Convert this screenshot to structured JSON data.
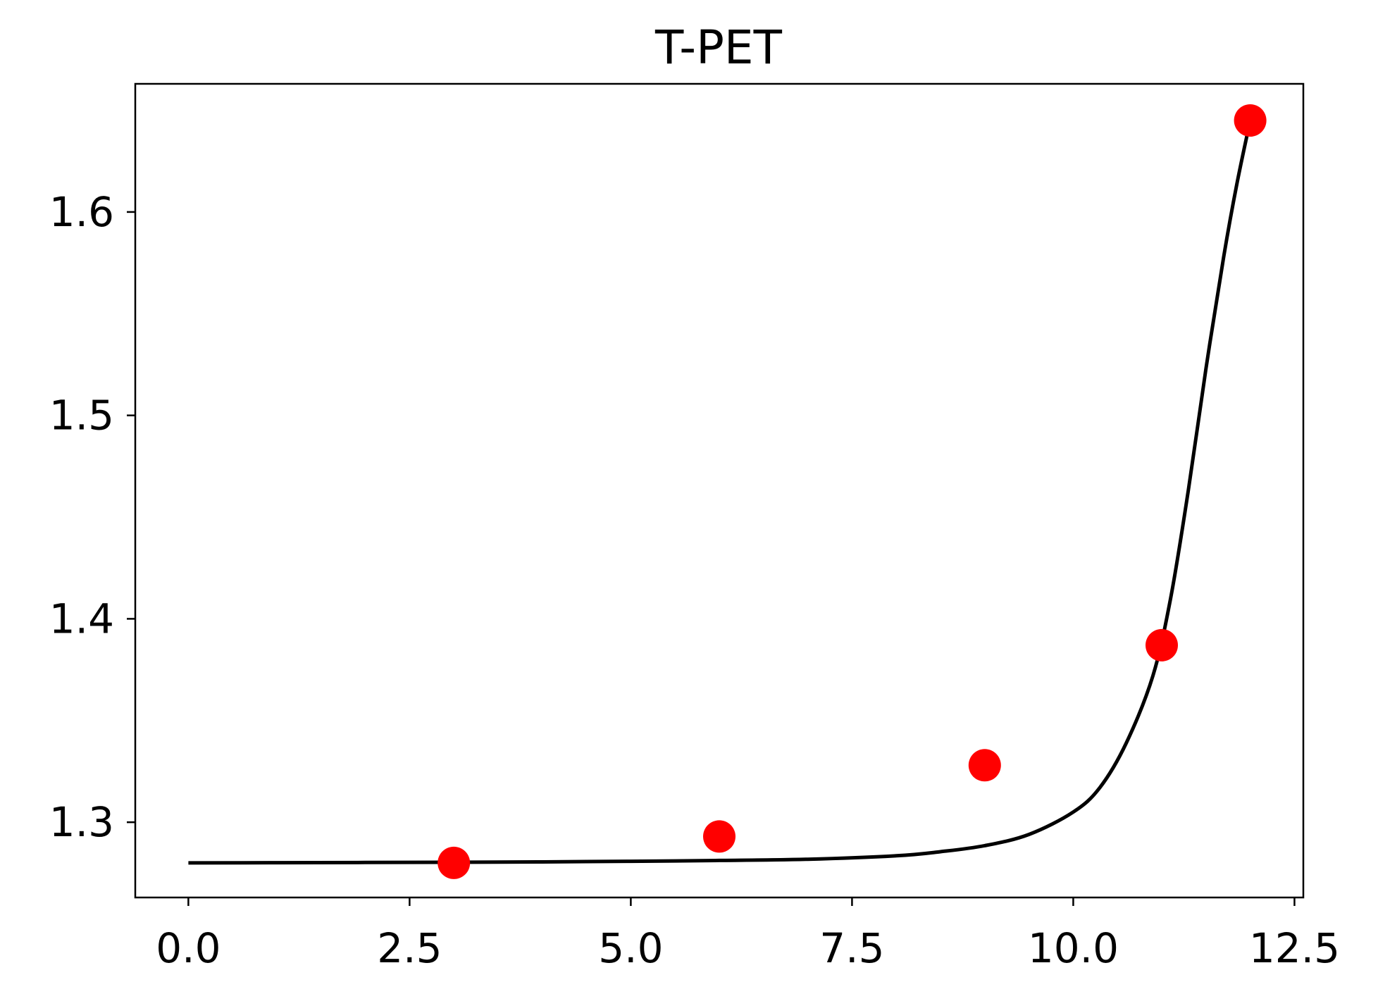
{
  "chart_data": {
    "type": "scatter",
    "title": "T-PET",
    "xlabel": "",
    "ylabel": "",
    "xlim": [
      -0.6,
      12.6
    ],
    "ylim": [
      1.263,
      1.663
    ],
    "x_ticks": [
      0.0,
      2.5,
      5.0,
      7.5,
      10.0,
      12.5
    ],
    "x_tick_labels": [
      "0.0",
      "2.5",
      "5.0",
      "7.5",
      "10.0",
      "12.5"
    ],
    "y_ticks": [
      1.3,
      1.4,
      1.5,
      1.6
    ],
    "y_tick_labels": [
      "1.3",
      "1.4",
      "1.5",
      "1.6"
    ],
    "grid": false,
    "points": {
      "color": "#ff0000",
      "x": [
        3,
        6,
        9,
        11,
        12
      ],
      "y": [
        1.28,
        1.293,
        1.328,
        1.387,
        1.645
      ]
    },
    "fit_curve": {
      "color": "#000000",
      "x": [
        0,
        1,
        2,
        3,
        4,
        5,
        6,
        7,
        8,
        8.5,
        9,
        9.5,
        10,
        10.3,
        10.6,
        10.9,
        11.1,
        11.3,
        11.5,
        11.7,
        11.85,
        12
      ],
      "y": [
        1.28,
        1.2801,
        1.2802,
        1.2803,
        1.2805,
        1.2808,
        1.2812,
        1.2818,
        1.2835,
        1.2855,
        1.2885,
        1.294,
        1.305,
        1.317,
        1.339,
        1.372,
        1.41,
        1.463,
        1.523,
        1.578,
        1.614,
        1.645
      ]
    }
  }
}
